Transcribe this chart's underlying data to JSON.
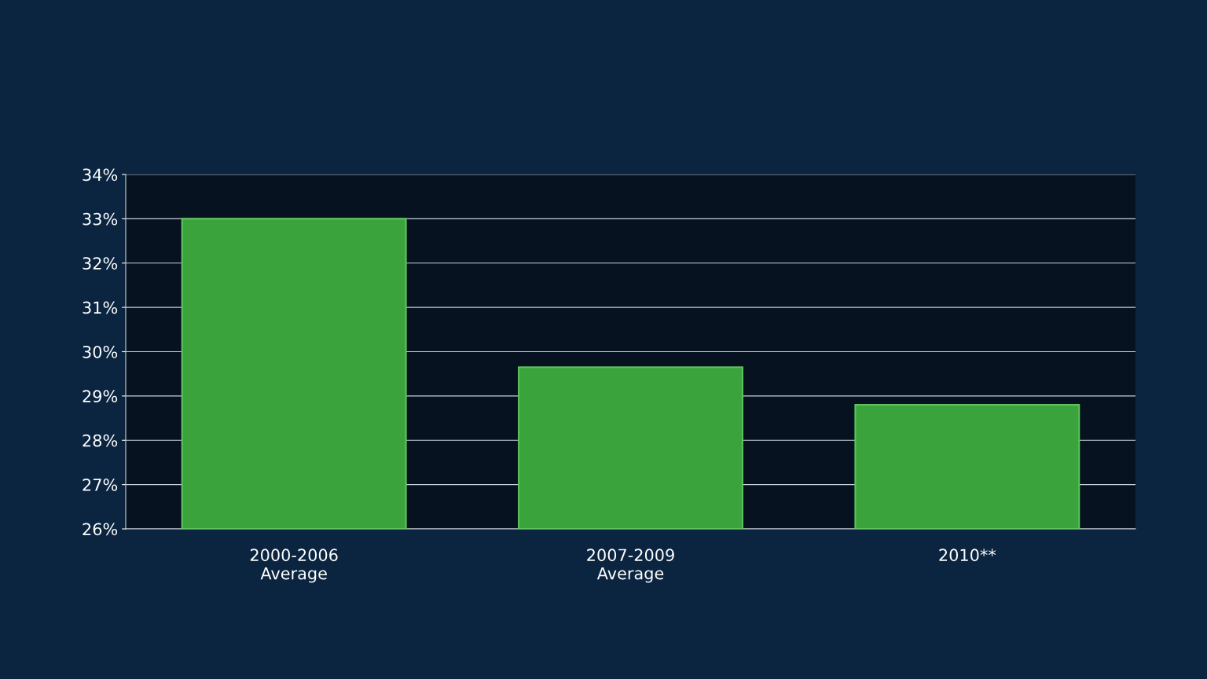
{
  "chart_data": {
    "type": "bar",
    "categories": [
      "2000-2006\nAverage",
      "2007-2009\nAverage",
      "2010**"
    ],
    "values": [
      33.0,
      29.65,
      28.8
    ],
    "color": "#3ba33b",
    "ylim": [
      26,
      34
    ],
    "yticks": [
      {
        "value": 26,
        "label": "26%"
      },
      {
        "value": 27,
        "label": "27%"
      },
      {
        "value": 28,
        "label": "28%"
      },
      {
        "value": 29,
        "label": "29%"
      },
      {
        "value": 30,
        "label": "30%"
      },
      {
        "value": 31,
        "label": "31%"
      },
      {
        "value": 32,
        "label": "32%"
      },
      {
        "value": 33,
        "label": "33%"
      },
      {
        "value": 34,
        "label": "34%"
      }
    ],
    "grid": "y"
  }
}
